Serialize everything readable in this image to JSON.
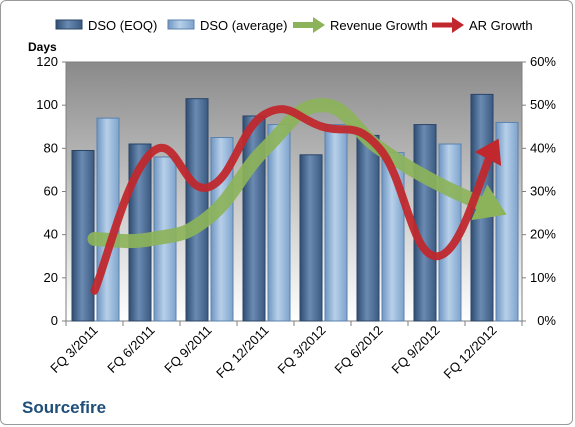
{
  "company": "Sourcefire",
  "colors": {
    "dso_eoq": "#4f6f96",
    "dso_avg": "#8fb2d6",
    "revenue_growth": "#8cb35a",
    "ar_growth": "#c0282d"
  },
  "chart_data": {
    "type": "bar",
    "title": "",
    "categories": [
      "FQ 3/2011",
      "FQ 6/2011",
      "FQ 9/2011",
      "FQ 12/2011",
      "FQ 3/2012",
      "FQ 6/2012",
      "FQ 9/2012",
      "FQ 12/2012"
    ],
    "ylabel": "Days",
    "ylim": [
      0,
      120
    ],
    "y_ticks": [
      "0",
      "20",
      "40",
      "60",
      "80",
      "100",
      "120"
    ],
    "y2lim": [
      0,
      0.6
    ],
    "y2_ticks": [
      "0%",
      "10%",
      "20%",
      "30%",
      "40%",
      "50%",
      "60%"
    ],
    "legend_position": "top",
    "grid": false,
    "series": [
      {
        "name": "DSO (EOQ)",
        "type": "bar",
        "axis": "left",
        "values": [
          79,
          82,
          103,
          95,
          77,
          86,
          91,
          105
        ]
      },
      {
        "name": "DSO (average)",
        "type": "bar",
        "axis": "left",
        "values": [
          94,
          76,
          85,
          91,
          91,
          78,
          82,
          92
        ]
      },
      {
        "name": "Revenue Growth",
        "type": "line",
        "axis": "right",
        "values": [
          0.19,
          0.19,
          0.24,
          0.4,
          0.5,
          0.4,
          0.32,
          0.26
        ]
      },
      {
        "name": "AR Growth",
        "type": "line",
        "axis": "right",
        "values": [
          0.07,
          0.39,
          0.31,
          0.48,
          0.45,
          0.4,
          0.15,
          0.4
        ]
      }
    ]
  }
}
